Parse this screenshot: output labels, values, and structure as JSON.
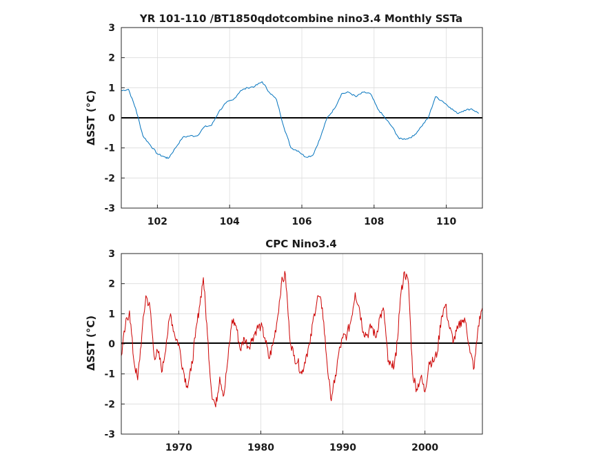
{
  "chart_data": [
    {
      "type": "line",
      "title": "YR 101-110 /BT1850qdotcombine nino3.4 Monthly SSTa",
      "ylabel": "ΔSST (°C)",
      "xlim": [
        101,
        111
      ],
      "ylim": [
        -3,
        3
      ],
      "xticks": [
        102,
        104,
        106,
        108,
        110
      ],
      "yticks": [
        -3,
        -2,
        -1,
        0,
        1,
        2,
        3
      ],
      "grid": true,
      "reference_line": 0,
      "series": [
        {
          "color": "#0072BD",
          "x": [
            101.0,
            101.2,
            101.4,
            101.6,
            101.8,
            102.0,
            102.2,
            102.3,
            102.5,
            102.7,
            102.9,
            103.1,
            103.3,
            103.5,
            103.7,
            103.9,
            104.1,
            104.3,
            104.5,
            104.7,
            104.9,
            105.1,
            105.3,
            105.5,
            105.7,
            105.9,
            106.1,
            106.3,
            106.5,
            106.7,
            106.9,
            107.1,
            107.3,
            107.5,
            107.7,
            107.9,
            108.1,
            108.3,
            108.5,
            108.7,
            108.9,
            109.1,
            109.3,
            109.5,
            109.7,
            109.9,
            110.1,
            110.3,
            110.5,
            110.7,
            110.9
          ],
          "y": [
            0.9,
            0.95,
            0.3,
            -0.6,
            -0.9,
            -1.2,
            -1.3,
            -1.35,
            -1.0,
            -0.65,
            -0.6,
            -0.6,
            -0.3,
            -0.25,
            0.2,
            0.5,
            0.6,
            0.9,
            1.0,
            1.05,
            1.2,
            0.85,
            0.6,
            -0.3,
            -1.0,
            -1.1,
            -1.3,
            -1.25,
            -0.7,
            0.0,
            0.3,
            0.8,
            0.85,
            0.7,
            0.85,
            0.8,
            0.3,
            0.0,
            -0.3,
            -0.7,
            -0.7,
            -0.6,
            -0.3,
            0.0,
            0.7,
            0.55,
            0.35,
            0.15,
            0.25,
            0.3,
            0.15
          ]
        }
      ]
    },
    {
      "type": "line",
      "title": "CPC Nino3.4",
      "ylabel": "ΔSST (°C)",
      "xlim": [
        1963,
        2007
      ],
      "ylim": [
        -3,
        3
      ],
      "xticks": [
        1970,
        1980,
        1990,
        2000
      ],
      "yticks": [
        -3,
        -2,
        -1,
        0,
        1,
        2,
        3
      ],
      "grid": true,
      "reference_line": 0,
      "series": [
        {
          "color": "#CC0000",
          "x": [
            1963.0,
            1963.5,
            1964.0,
            1964.5,
            1965.0,
            1965.5,
            1966.0,
            1966.5,
            1967.0,
            1967.5,
            1968.0,
            1968.5,
            1969.0,
            1969.5,
            1970.0,
            1970.5,
            1971.0,
            1971.5,
            1972.0,
            1972.5,
            1973.0,
            1973.5,
            1974.0,
            1974.5,
            1975.0,
            1975.5,
            1976.0,
            1976.5,
            1977.0,
            1977.5,
            1978.0,
            1978.5,
            1979.0,
            1979.5,
            1980.0,
            1980.5,
            1981.0,
            1981.5,
            1982.0,
            1982.5,
            1983.0,
            1983.5,
            1984.0,
            1984.5,
            1985.0,
            1985.5,
            1986.0,
            1986.5,
            1987.0,
            1987.5,
            1988.0,
            1988.5,
            1989.0,
            1989.5,
            1990.0,
            1990.5,
            1991.0,
            1991.5,
            1992.0,
            1992.5,
            1993.0,
            1993.5,
            1994.0,
            1994.5,
            1995.0,
            1995.5,
            1996.0,
            1996.5,
            1997.0,
            1997.5,
            1998.0,
            1998.5,
            1999.0,
            1999.5,
            2000.0,
            2000.5,
            2001.0,
            2001.5,
            2002.0,
            2002.5,
            2003.0,
            2003.5,
            2004.0,
            2004.5,
            2005.0,
            2005.5,
            2006.0,
            2006.5,
            2007.0
          ],
          "y": [
            -0.4,
            0.6,
            1.1,
            -0.5,
            -1.2,
            0.3,
            1.6,
            1.2,
            -0.4,
            -0.3,
            -0.9,
            0.1,
            1.0,
            0.3,
            0.0,
            -0.8,
            -1.4,
            -0.9,
            0.2,
            1.2,
            2.2,
            0.3,
            -1.6,
            -2.1,
            -1.1,
            -1.7,
            -0.5,
            0.8,
            0.6,
            -0.2,
            0.2,
            -0.1,
            0.2,
            0.5,
            0.6,
            0.2,
            -0.5,
            0.0,
            0.8,
            2.0,
            2.3,
            0.3,
            -0.4,
            -0.6,
            -1.0,
            -0.4,
            0.0,
            1.0,
            1.6,
            1.2,
            -0.4,
            -1.8,
            -1.3,
            -0.3,
            0.2,
            0.3,
            0.8,
            1.7,
            1.2,
            0.4,
            0.3,
            0.6,
            0.2,
            0.9,
            1.1,
            -0.6,
            -0.8,
            -0.4,
            1.5,
            2.4,
            2.0,
            -1.0,
            -1.5,
            -1.1,
            -1.6,
            -0.6,
            -0.6,
            -0.3,
            0.9,
            1.3,
            0.5,
            0.1,
            0.5,
            0.8,
            0.7,
            -0.3,
            -0.8,
            0.6,
            1.2
          ]
        }
      ]
    }
  ]
}
